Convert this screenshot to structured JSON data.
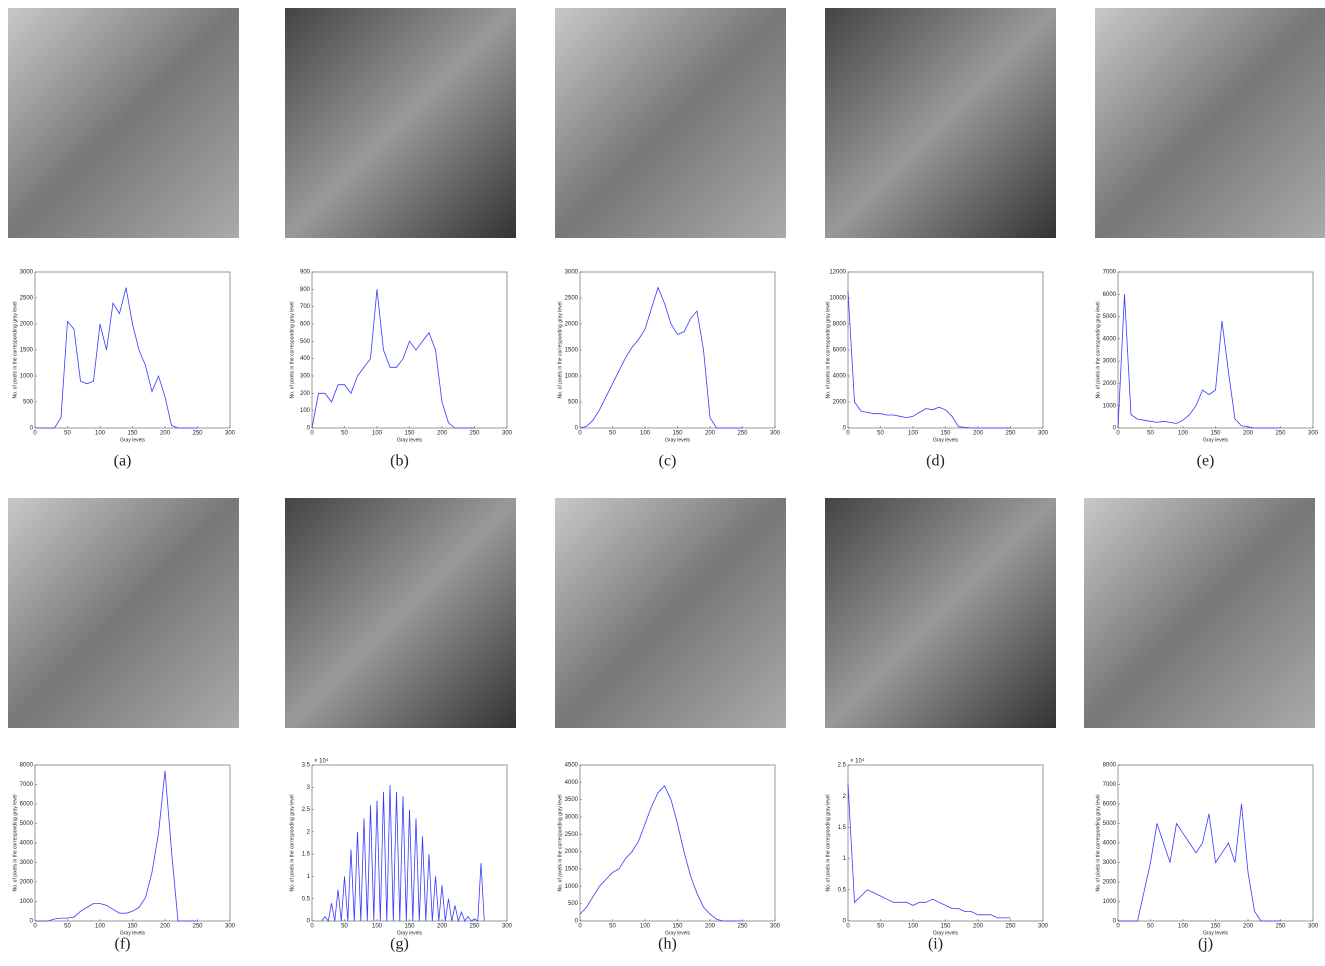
{
  "chart_data": [
    {
      "type": "line",
      "caption": "(a)",
      "xlabel": "Gray levels",
      "ylabel": "No. of pixels in the corresponding gray level",
      "color": "#3a3aff",
      "x": [
        0,
        10,
        20,
        30,
        40,
        50,
        60,
        70,
        80,
        90,
        100,
        110,
        120,
        130,
        140,
        150,
        160,
        170,
        180,
        190,
        200,
        210,
        220,
        230,
        240,
        250
      ],
      "values": [
        0,
        0,
        0,
        0,
        200,
        2050,
        1900,
        900,
        850,
        900,
        2000,
        1500,
        2400,
        2200,
        2700,
        2000,
        1500,
        1200,
        700,
        1000,
        600,
        50,
        0,
        0,
        0,
        0
      ],
      "xlim": [
        0,
        300
      ],
      "xticks": [
        0,
        50,
        100,
        150,
        200,
        250,
        300
      ],
      "ylim": [
        0,
        3000
      ],
      "yticks": [
        0,
        500,
        1000,
        1500,
        2000,
        2500,
        3000
      ]
    },
    {
      "type": "line",
      "caption": "(b)",
      "xlabel": "Gray levels",
      "ylabel": "No. of pixels in the corresponding gray level",
      "color": "#3a3aff",
      "x": [
        0,
        10,
        20,
        30,
        40,
        50,
        60,
        70,
        80,
        90,
        100,
        110,
        120,
        130,
        140,
        150,
        160,
        170,
        180,
        190,
        200,
        210,
        220,
        230,
        240,
        250
      ],
      "values": [
        0,
        200,
        200,
        150,
        250,
        250,
        200,
        300,
        350,
        400,
        800,
        450,
        350,
        350,
        400,
        500,
        450,
        500,
        550,
        450,
        150,
        30,
        0,
        0,
        0,
        0
      ],
      "xlim": [
        0,
        300
      ],
      "xticks": [
        0,
        50,
        100,
        150,
        200,
        250,
        300
      ],
      "ylim": [
        0,
        900
      ],
      "yticks": [
        0,
        100,
        200,
        300,
        400,
        500,
        600,
        700,
        800,
        900
      ]
    },
    {
      "type": "line",
      "caption": "(c)",
      "xlabel": "Gray levels",
      "ylabel": "No. of pixels in the corresponding gray level",
      "color": "#3a3aff",
      "x": [
        0,
        10,
        20,
        30,
        40,
        50,
        60,
        70,
        80,
        90,
        100,
        110,
        120,
        130,
        140,
        150,
        160,
        170,
        180,
        190,
        200,
        210,
        220,
        230,
        240,
        250
      ],
      "values": [
        0,
        30,
        150,
        350,
        600,
        850,
        1100,
        1350,
        1550,
        1700,
        1900,
        2300,
        2700,
        2400,
        2000,
        1800,
        1850,
        2100,
        2250,
        1500,
        200,
        0,
        0,
        0,
        0,
        0
      ],
      "xlim": [
        0,
        300
      ],
      "xticks": [
        0,
        50,
        100,
        150,
        200,
        250,
        300
      ],
      "ylim": [
        0,
        3000
      ],
      "yticks": [
        0,
        500,
        1000,
        1500,
        2000,
        2500,
        3000
      ]
    },
    {
      "type": "line",
      "caption": "(d)",
      "xlabel": "Gray levels",
      "ylabel": "No. of pixels in the corresponding gray level",
      "color": "#3a3aff",
      "x": [
        0,
        10,
        20,
        30,
        40,
        50,
        60,
        70,
        80,
        90,
        100,
        110,
        120,
        130,
        140,
        150,
        160,
        170,
        180,
        190,
        200,
        210,
        220,
        230,
        240,
        250
      ],
      "values": [
        10500,
        2000,
        1300,
        1200,
        1100,
        1100,
        1000,
        1000,
        900,
        800,
        900,
        1200,
        1500,
        1400,
        1600,
        1400,
        900,
        100,
        50,
        0,
        0,
        0,
        0,
        0,
        0,
        0
      ],
      "xlim": [
        0,
        300
      ],
      "xticks": [
        0,
        50,
        100,
        150,
        200,
        250,
        300
      ],
      "ylim": [
        0,
        12000
      ],
      "yticks": [
        0,
        2000,
        4000,
        6000,
        8000,
        10000,
        12000
      ]
    },
    {
      "type": "line",
      "caption": "(e)",
      "xlabel": "Gray levels",
      "ylabel": "No. of pixels in the corresponding gray level",
      "color": "#3a3aff",
      "x": [
        0,
        10,
        20,
        30,
        40,
        50,
        60,
        70,
        80,
        90,
        100,
        110,
        120,
        130,
        140,
        150,
        160,
        170,
        180,
        190,
        200,
        210,
        220,
        230,
        240,
        250
      ],
      "values": [
        0,
        6000,
        600,
        400,
        350,
        300,
        250,
        300,
        250,
        200,
        350,
        600,
        1000,
        1700,
        1500,
        1700,
        4800,
        2500,
        400,
        100,
        50,
        0,
        0,
        0,
        0,
        0
      ],
      "xlim": [
        0,
        300
      ],
      "xticks": [
        0,
        50,
        100,
        150,
        200,
        250,
        300
      ],
      "ylim": [
        0,
        7000
      ],
      "yticks": [
        0,
        1000,
        2000,
        3000,
        4000,
        5000,
        6000,
        7000
      ]
    },
    {
      "type": "line",
      "caption": "(f)",
      "xlabel": "Gray levels",
      "ylabel": "No. of pixels in the corresponding gray level",
      "color": "#3a3aff",
      "x": [
        0,
        10,
        20,
        30,
        40,
        50,
        60,
        70,
        80,
        90,
        100,
        110,
        120,
        130,
        140,
        150,
        160,
        170,
        180,
        190,
        200,
        210,
        220,
        230,
        240,
        250
      ],
      "values": [
        0,
        0,
        0,
        100,
        150,
        150,
        200,
        500,
        700,
        900,
        900,
        800,
        600,
        400,
        400,
        500,
        700,
        1200,
        2500,
        4500,
        7700,
        3600,
        0,
        0,
        0,
        0
      ],
      "xlim": [
        0,
        300
      ],
      "xticks": [
        0,
        50,
        100,
        150,
        200,
        250,
        300
      ],
      "ylim": [
        0,
        8000
      ],
      "yticks": [
        0,
        1000,
        2000,
        3000,
        4000,
        5000,
        6000,
        7000,
        8000
      ]
    },
    {
      "type": "line",
      "caption": "(g)",
      "xlabel": "Gray levels",
      "ylabel": "No. of pixels in the corresponding gray level",
      "y_multiplier": "× 10⁴",
      "color": "#3a3aff",
      "x": [
        15,
        20,
        25,
        30,
        35,
        40,
        45,
        50,
        55,
        60,
        65,
        70,
        75,
        80,
        85,
        90,
        95,
        100,
        105,
        110,
        115,
        120,
        125,
        130,
        135,
        140,
        145,
        150,
        155,
        160,
        165,
        170,
        175,
        180,
        185,
        190,
        195,
        200,
        205,
        210,
        215,
        220,
        225,
        230,
        235,
        240,
        245,
        250,
        255,
        260,
        265
      ],
      "values": [
        0,
        0.1,
        0,
        0.4,
        0,
        0.7,
        0,
        1.0,
        0,
        1.6,
        0,
        2.0,
        0,
        2.3,
        0,
        2.6,
        0,
        2.7,
        0,
        2.9,
        0,
        3.05,
        0,
        2.9,
        0,
        2.8,
        0,
        2.5,
        0,
        2.3,
        0,
        1.9,
        0,
        1.5,
        0,
        1.0,
        0,
        0.8,
        0,
        0.5,
        0,
        0.35,
        0,
        0.2,
        0,
        0.1,
        0,
        0.05,
        0,
        1.3,
        0
      ],
      "xlim": [
        0,
        300
      ],
      "xticks": [
        0,
        50,
        100,
        150,
        200,
        250,
        300
      ],
      "ylim": [
        0,
        3.5
      ],
      "yticks": [
        0,
        0.5,
        1,
        1.5,
        2,
        2.5,
        3,
        3.5
      ]
    },
    {
      "type": "line",
      "caption": "(h)",
      "xlabel": "Gray levels",
      "ylabel": "No. of pixels in the corresponding gray level",
      "color": "#3a3aff",
      "x": [
        0,
        10,
        20,
        30,
        40,
        50,
        60,
        70,
        80,
        90,
        100,
        110,
        120,
        130,
        140,
        150,
        160,
        170,
        180,
        190,
        200,
        210,
        220,
        230,
        240,
        250
      ],
      "values": [
        200,
        400,
        700,
        1000,
        1200,
        1400,
        1500,
        1800,
        2000,
        2300,
        2800,
        3300,
        3700,
        3900,
        3500,
        2800,
        2000,
        1300,
        800,
        400,
        200,
        50,
        0,
        0,
        0,
        0
      ],
      "xlim": [
        0,
        300
      ],
      "xticks": [
        0,
        50,
        100,
        150,
        200,
        250,
        300
      ],
      "ylim": [
        0,
        4500
      ],
      "yticks": [
        0,
        500,
        1000,
        1500,
        2000,
        2500,
        3000,
        3500,
        4000,
        4500
      ]
    },
    {
      "type": "line",
      "caption": "(i)",
      "xlabel": "Gray levels",
      "ylabel": "No. of pixels in the corresponding gray level",
      "y_multiplier": "× 10⁴",
      "color": "#3a3aff",
      "x": [
        0,
        10,
        20,
        30,
        40,
        50,
        60,
        70,
        80,
        90,
        100,
        110,
        120,
        130,
        140,
        150,
        160,
        170,
        180,
        190,
        200,
        210,
        220,
        230,
        240,
        250
      ],
      "values": [
        2.2,
        0.3,
        0.4,
        0.5,
        0.45,
        0.4,
        0.35,
        0.3,
        0.3,
        0.3,
        0.25,
        0.3,
        0.3,
        0.35,
        0.3,
        0.25,
        0.2,
        0.2,
        0.15,
        0.15,
        0.1,
        0.1,
        0.1,
        0.05,
        0.05,
        0.05
      ],
      "xlim": [
        0,
        300
      ],
      "xticks": [
        0,
        50,
        100,
        150,
        200,
        250,
        300
      ],
      "ylim": [
        0,
        2.5
      ],
      "yticks": [
        0,
        0.5,
        1,
        1.5,
        2,
        2.5
      ]
    },
    {
      "type": "line",
      "caption": "(j)",
      "xlabel": "Gray levels",
      "ylabel": "No. of pixels in the corresponding gray level",
      "color": "#3a3aff",
      "x": [
        0,
        10,
        20,
        30,
        40,
        50,
        60,
        70,
        80,
        90,
        100,
        110,
        120,
        130,
        140,
        150,
        160,
        170,
        180,
        190,
        200,
        210,
        220,
        230,
        240,
        250
      ],
      "values": [
        0,
        0,
        0,
        0,
        1500,
        3000,
        5000,
        4000,
        3000,
        5000,
        4500,
        4000,
        3500,
        4000,
        5500,
        3000,
        3500,
        4000,
        3000,
        6000,
        2500,
        500,
        0,
        0,
        0,
        0
      ],
      "xlim": [
        0,
        300
      ],
      "xticks": [
        0,
        50,
        100,
        150,
        200,
        250,
        300
      ],
      "ylim": [
        0,
        8000
      ],
      "yticks": [
        0,
        1000,
        2000,
        3000,
        4000,
        5000,
        6000,
        7000,
        8000
      ]
    }
  ]
}
